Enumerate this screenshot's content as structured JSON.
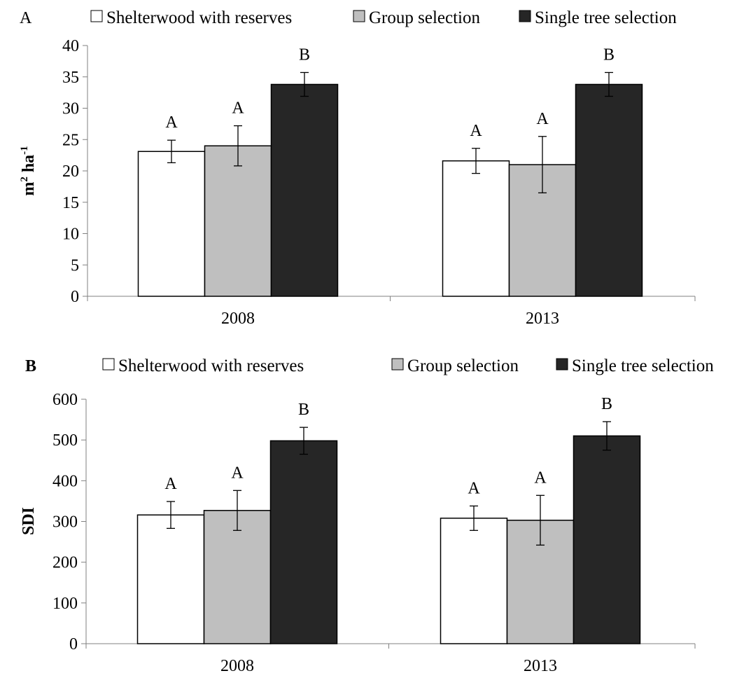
{
  "chart_data": [
    {
      "type": "bar",
      "panel_label": "A",
      "ylabel": "m",
      "ylabel_sup1": "2",
      "ylabel_mid": " ha",
      "ylabel_sup2": "-1",
      "ylim": [
        0,
        40
      ],
      "yticks": [
        0,
        5,
        10,
        15,
        20,
        25,
        30,
        35,
        40
      ],
      "categories": [
        "2008",
        "2013"
      ],
      "legend_position": "top",
      "series": [
        {
          "name": "Shelterwood with reserves",
          "color": "#ffffff",
          "values": [
            23.1,
            21.6
          ],
          "errors": [
            1.8,
            2.0
          ],
          "sig": [
            "A",
            "A"
          ]
        },
        {
          "name": "Group selection",
          "color": "#bfbfbf",
          "values": [
            24.0,
            21.0
          ],
          "errors": [
            3.2,
            4.5
          ],
          "sig": [
            "A",
            "A"
          ]
        },
        {
          "name": "Single tree selection",
          "color": "#262626",
          "values": [
            33.8,
            33.8
          ],
          "errors": [
            1.9,
            1.9
          ],
          "sig": [
            "B",
            "B"
          ]
        }
      ]
    },
    {
      "type": "bar",
      "panel_label": "B",
      "ylabel": "SDI",
      "ylim": [
        0,
        600
      ],
      "yticks": [
        0,
        100,
        200,
        300,
        400,
        500,
        600
      ],
      "categories": [
        "2008",
        "2013"
      ],
      "legend_position": "top",
      "series": [
        {
          "name": "Shelterwood with reserves",
          "color": "#ffffff",
          "values": [
            316,
            308
          ],
          "errors": [
            33,
            30
          ],
          "sig": [
            "A",
            "A"
          ]
        },
        {
          "name": "Group selection",
          "color": "#bfbfbf",
          "values": [
            327,
            303
          ],
          "errors": [
            49,
            61
          ],
          "sig": [
            "A",
            "A"
          ]
        },
        {
          "name": "Single tree selection",
          "color": "#262626",
          "values": [
            498,
            510
          ],
          "errors": [
            33,
            35
          ],
          "sig": [
            "B",
            "B"
          ]
        }
      ]
    }
  ]
}
